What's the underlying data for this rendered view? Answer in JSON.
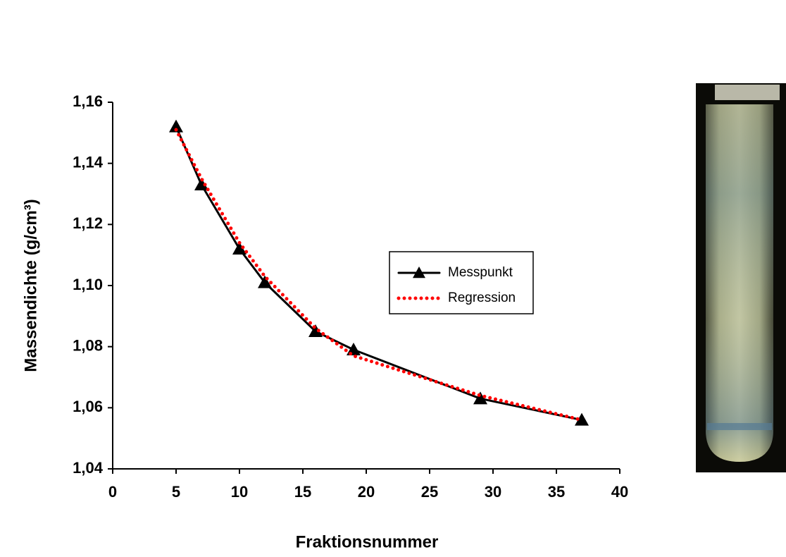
{
  "chart_data": {
    "type": "line",
    "x_label": "Fraktionsnummer",
    "y_label": "Massendichte (g/cm³)",
    "x": [
      5,
      7,
      10,
      12,
      16,
      19,
      29,
      37
    ],
    "series": [
      {
        "name": "Messpunkt",
        "color": "#000000",
        "marker": "triangle",
        "values": [
          1.152,
          1.133,
          1.112,
          1.101,
          1.085,
          1.079,
          1.063,
          1.056
        ]
      },
      {
        "name": "Regression",
        "color": "#ff0000",
        "dotted": true,
        "values": [
          1.151,
          1.135,
          1.114,
          1.103,
          1.086,
          1.077,
          1.064,
          1.056
        ]
      }
    ],
    "xlim": [
      0,
      40
    ],
    "xticks": [
      0,
      5,
      10,
      15,
      20,
      25,
      30,
      35,
      40
    ],
    "ylim": [
      1.04,
      1.16
    ],
    "yticks": [
      {
        "value": 1.04,
        "label": "1,04"
      },
      {
        "value": 1.06,
        "label": "1,06"
      },
      {
        "value": 1.08,
        "label": "1,08"
      },
      {
        "value": 1.1,
        "label": "1,10"
      },
      {
        "value": 1.12,
        "label": "1,12"
      },
      {
        "value": 1.14,
        "label": "1,14"
      },
      {
        "value": 1.16,
        "label": "1,16"
      }
    ],
    "grid": false
  }
}
